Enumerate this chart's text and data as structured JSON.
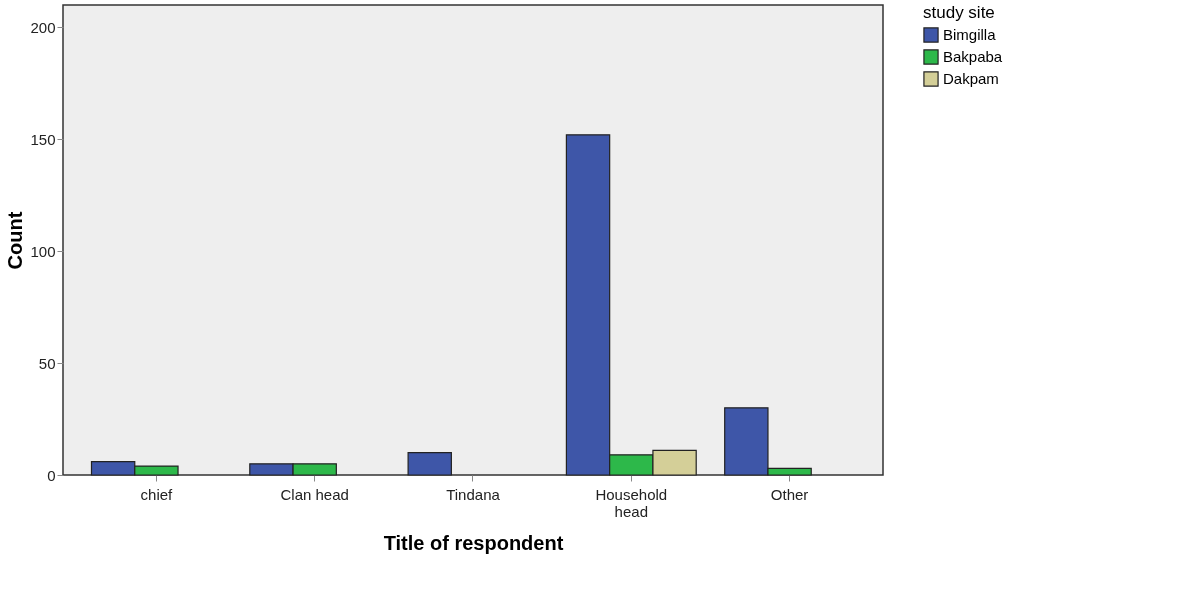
{
  "chart_data": {
    "type": "bar",
    "xlabel": "Title of respondent",
    "ylabel": "Count",
    "legend_title": "study site",
    "categories": [
      "chief",
      "Clan head",
      "Tindana",
      "Household head",
      "Other"
    ],
    "series": [
      {
        "name": "Bimgilla",
        "color": "#3e56a8",
        "values": [
          6,
          5,
          10,
          152,
          30
        ]
      },
      {
        "name": "Bakpaba",
        "color": "#2db84a",
        "values": [
          4,
          5,
          null,
          9,
          3
        ]
      },
      {
        "name": "Dakpam",
        "color": "#d4cf98",
        "values": [
          null,
          null,
          null,
          11,
          null
        ]
      }
    ],
    "ylim": [
      0,
      210
    ],
    "yticks": [
      0,
      50,
      100,
      150,
      200
    ],
    "grid": false,
    "legend": "top right"
  }
}
